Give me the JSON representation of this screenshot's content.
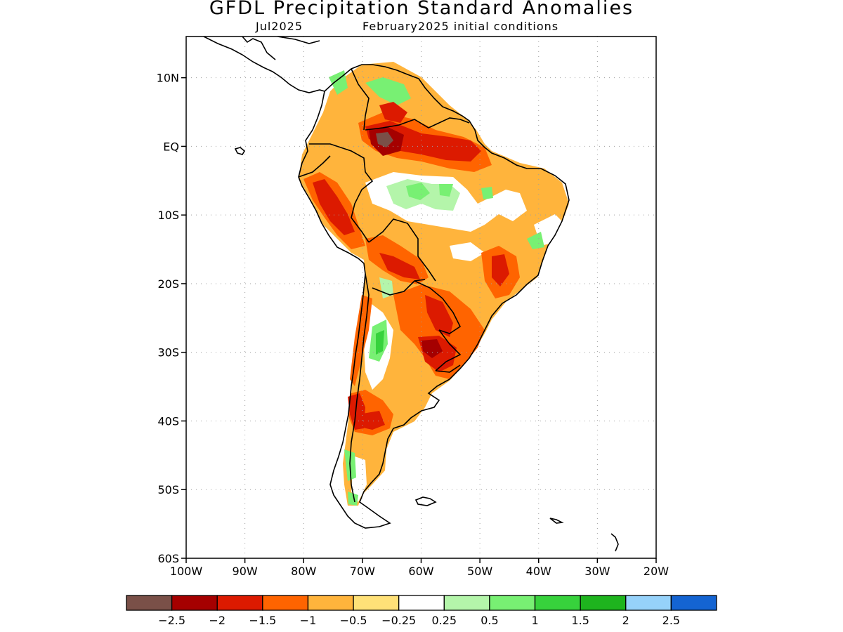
{
  "title": "GFDL Precipitation Standard Anomalies",
  "subtitle_left": "Jul2025",
  "subtitle_right": "February2025 initial conditions",
  "axes": {
    "lat_labels": [
      {
        "lat": 10,
        "text": "10N"
      },
      {
        "lat": 0,
        "text": "EQ"
      },
      {
        "lat": -10,
        "text": "10S"
      },
      {
        "lat": -20,
        "text": "20S"
      },
      {
        "lat": -30,
        "text": "30S"
      },
      {
        "lat": -40,
        "text": "40S"
      },
      {
        "lat": -50,
        "text": "50S"
      },
      {
        "lat": -60,
        "text": "60S"
      }
    ],
    "lon_labels": [
      {
        "lon": -100,
        "text": "100W"
      },
      {
        "lon": -90,
        "text": "90W"
      },
      {
        "lon": -80,
        "text": "80W"
      },
      {
        "lon": -70,
        "text": "70W"
      },
      {
        "lon": -60,
        "text": "60W"
      },
      {
        "lon": -50,
        "text": "50W"
      },
      {
        "lon": -40,
        "text": "40W"
      },
      {
        "lon": -30,
        "text": "30W"
      },
      {
        "lon": -20,
        "text": "20W"
      }
    ],
    "lon_range": [
      -100,
      -20
    ],
    "lat_range": [
      -60,
      16
    ],
    "grid": true
  },
  "colorbar": {
    "colors": [
      "#7a5048",
      "#a50000",
      "#dc1a00",
      "#ff6400",
      "#ffb43c",
      "#ffe178",
      "#ffffff",
      "#b4f5aa",
      "#78f073",
      "#37d23c",
      "#1eb41e",
      "#96d2fa",
      "#1464d2"
    ],
    "labels": [
      "−2.5",
      "−2",
      "−1.5",
      "−1",
      "−0.5",
      "−0.25",
      "0.25",
      "0.5",
      "1",
      "1.5",
      "2",
      "2.5"
    ]
  }
}
